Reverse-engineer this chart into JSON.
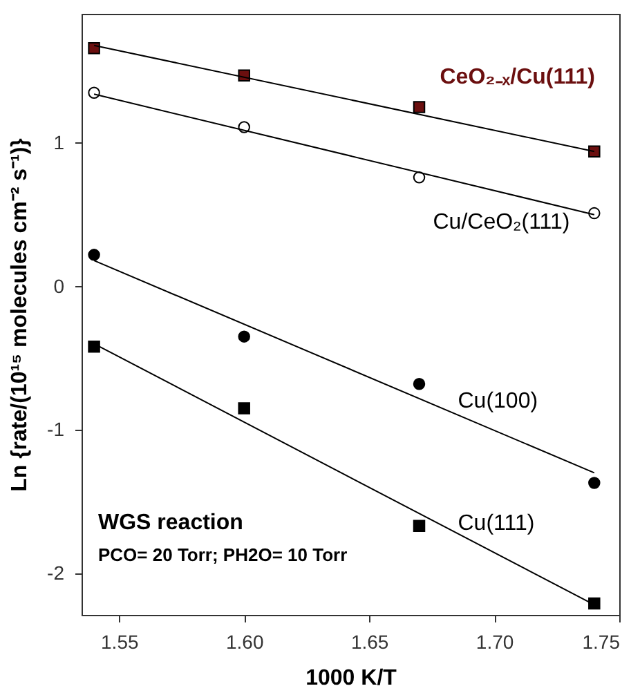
{
  "chart_data": {
    "type": "scatter",
    "xlabel": "1000 K/T",
    "ylabel": "Ln {rate/(10¹⁵ molecules cm⁻² s⁻¹)}",
    "xlim": [
      1.535,
      1.75
    ],
    "ylim": [
      -2.29,
      1.9
    ],
    "xticks": [
      1.55,
      {
        "value": 1.6,
        "label": "1.60"
      },
      1.65,
      {
        "value": 1.7,
        "label": "1.70"
      },
      1.75
    ],
    "yticks": [
      -2,
      -1,
      0,
      1
    ],
    "grid": false,
    "series": [
      {
        "name": "CeO₂₋ₓ/Cu(111)",
        "color": "#6b0f0f",
        "marker": "square",
        "x": [
          1.54,
          1.6,
          1.67,
          1.74
        ],
        "values": [
          1.66,
          1.47,
          1.25,
          0.94
        ]
      },
      {
        "name": "Cu/CeO₂(111)",
        "color": "#ffffff",
        "marker": "circle",
        "x": [
          1.54,
          1.6,
          1.67,
          1.74
        ],
        "values": [
          1.35,
          1.11,
          0.76,
          0.51
        ]
      },
      {
        "name": "Cu(100)",
        "color": "#000000",
        "marker": "circle",
        "x": [
          1.54,
          1.6,
          1.67,
          1.74
        ],
        "values": [
          0.22,
          -0.35,
          -0.68,
          -1.37
        ]
      },
      {
        "name": "Cu(111)",
        "color": "#000000",
        "marker": "square",
        "x": [
          1.54,
          1.6,
          1.67,
          1.74
        ],
        "values": [
          -0.42,
          -0.85,
          -1.67,
          -2.21
        ]
      },
      {
        "type": "line",
        "color": "#000000",
        "line_style": "solid",
        "x": [
          1.54,
          1.74
        ],
        "values": [
          1.68,
          0.94
        ]
      },
      {
        "type": "line",
        "color": "#000000",
        "line_style": "solid",
        "x": [
          1.54,
          1.74
        ],
        "values": [
          1.34,
          0.5
        ]
      },
      {
        "type": "line",
        "color": "#000000",
        "line_style": "solid",
        "x": [
          1.54,
          1.74
        ],
        "values": [
          0.18,
          -1.3
        ]
      },
      {
        "type": "line",
        "color": "#000000",
        "line_style": "solid",
        "x": [
          1.54,
          1.74
        ],
        "values": [
          -0.4,
          -2.22
        ]
      }
    ],
    "annotations": [
      "WGS reaction",
      "PCO= 20 Torr; PH2O= 10 Torr"
    ]
  }
}
